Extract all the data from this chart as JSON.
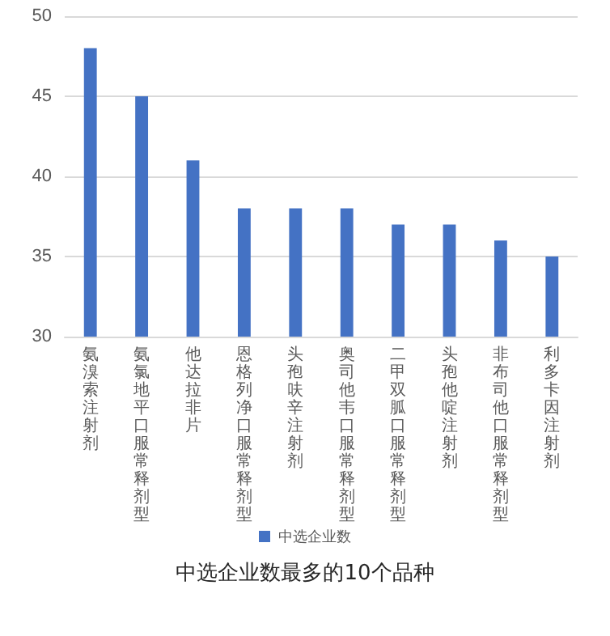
{
  "chart_data": {
    "type": "bar",
    "title": "中选企业数最多的10个品种",
    "categories": [
      "氨溴索注射剂",
      "氨氯地平口服常释剂型",
      "他达拉非片",
      "恩格列净口服常释剂型",
      "头孢呋辛注射剂",
      "奥司他韦口服常释剂型",
      "二甲双胍口服常释剂型",
      "头孢他啶注射剂",
      "非布司他口服常释剂型",
      "利多卡因注射剂"
    ],
    "series": [
      {
        "name": "中选企业数",
        "color": "#4472c4",
        "values": [
          48,
          45,
          41,
          38,
          38,
          38,
          37,
          37,
          36,
          35
        ]
      }
    ],
    "ylim": [
      30,
      50
    ],
    "yticks": [
      30,
      35,
      40,
      45,
      50
    ],
    "grid": "y",
    "legend": "bottom"
  }
}
